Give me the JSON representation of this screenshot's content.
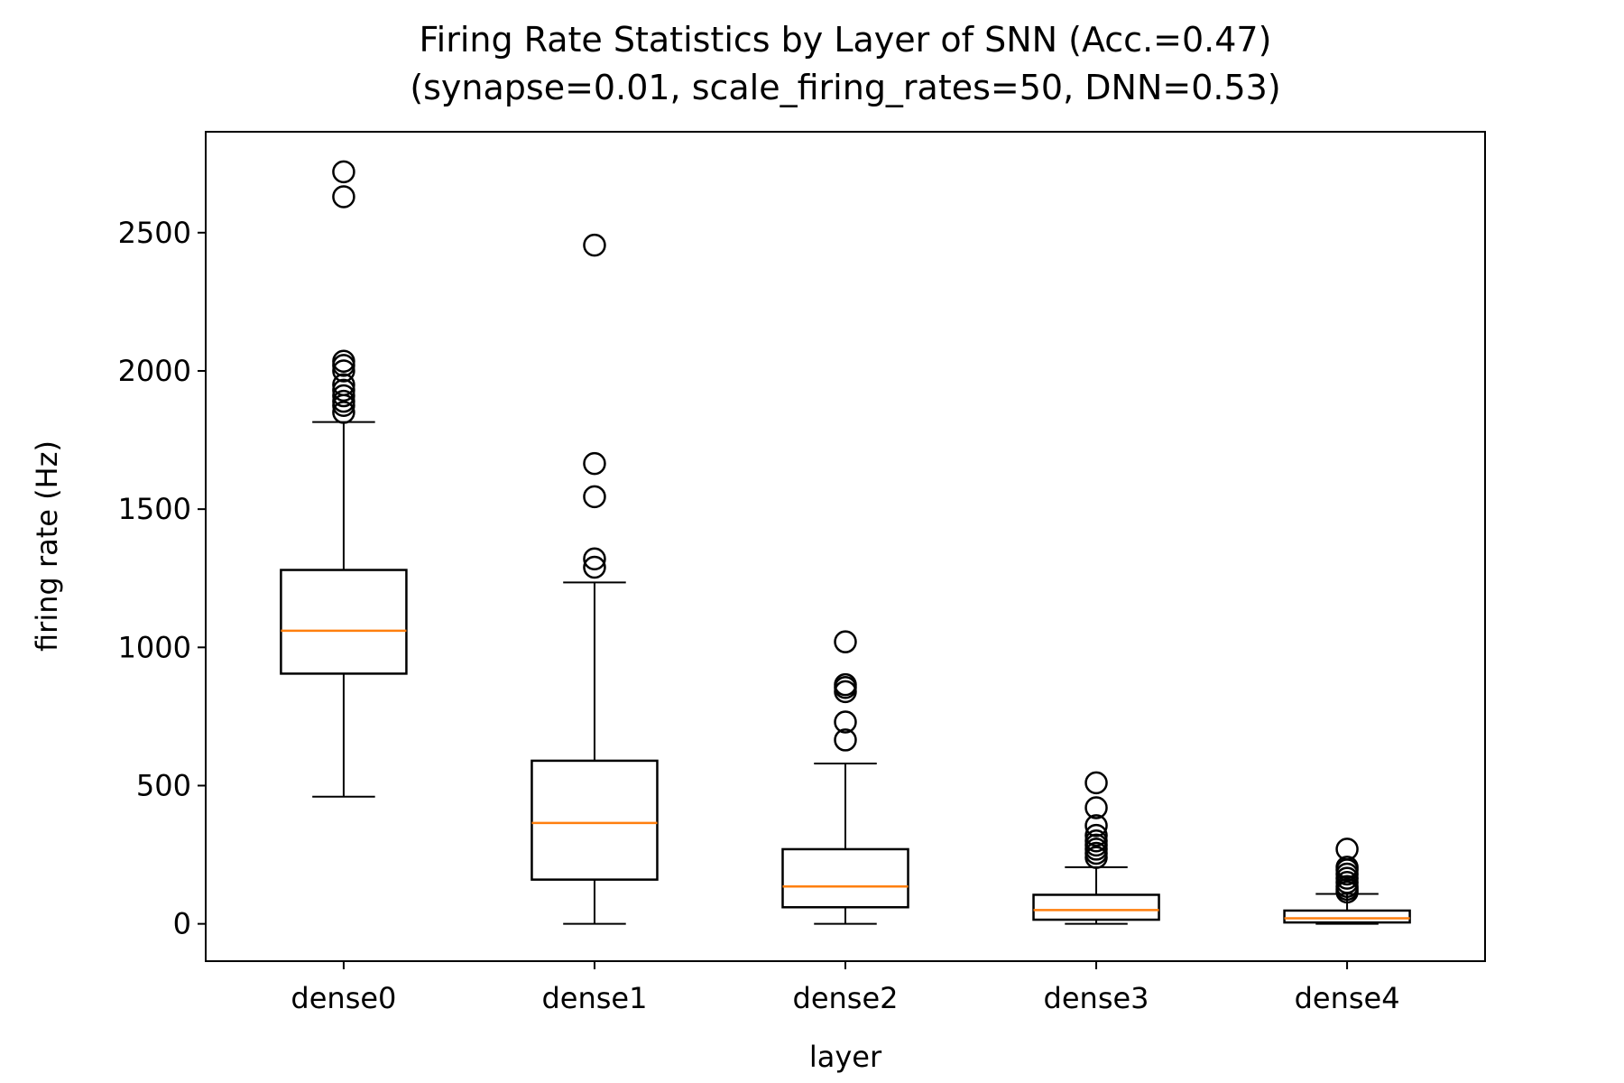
{
  "chart_data": {
    "type": "boxplot",
    "title_line1": "Firing Rate Statistics by Layer of SNN (Acc.=0.47)",
    "title_line2": "(synapse=0.01, scale_firing_rates=50, DNN=0.53)",
    "xlabel": "layer",
    "ylabel": "firing rate (Hz)",
    "ylim": [
      -135,
      2865
    ],
    "yticks": [
      0,
      500,
      1000,
      1500,
      2000,
      2500
    ],
    "grid": false,
    "colors": {
      "box": "#000000",
      "median": "#ff7f0e",
      "flier": "#000000"
    },
    "categories": [
      "dense0",
      "dense1",
      "dense2",
      "dense3",
      "dense4"
    ],
    "boxes": [
      {
        "name": "dense0",
        "whisker_low": 460,
        "q1": 905,
        "median": 1060,
        "q3": 1280,
        "whisker_high": 1815,
        "fliers": [
          1850,
          1875,
          1890,
          1910,
          1930,
          1950,
          2000,
          2020,
          2035,
          2630,
          2720
        ]
      },
      {
        "name": "dense1",
        "whisker_low": 0,
        "q1": 160,
        "median": 365,
        "q3": 590,
        "whisker_high": 1235,
        "fliers": [
          1290,
          1320,
          1545,
          1665,
          2455
        ]
      },
      {
        "name": "dense2",
        "whisker_low": 0,
        "q1": 60,
        "median": 135,
        "q3": 270,
        "whisker_high": 580,
        "fliers": [
          665,
          730,
          840,
          855,
          865,
          1020
        ]
      },
      {
        "name": "dense3",
        "whisker_low": 0,
        "q1": 15,
        "median": 50,
        "q3": 105,
        "whisker_high": 205,
        "fliers": [
          240,
          255,
          270,
          285,
          300,
          320,
          355,
          420,
          510
        ]
      },
      {
        "name": "dense4",
        "whisker_low": 0,
        "q1": 5,
        "median": 20,
        "q3": 48,
        "whisker_high": 108,
        "fliers": [
          115,
          125,
          135,
          150,
          165,
          180,
          195,
          205,
          270
        ]
      }
    ]
  }
}
